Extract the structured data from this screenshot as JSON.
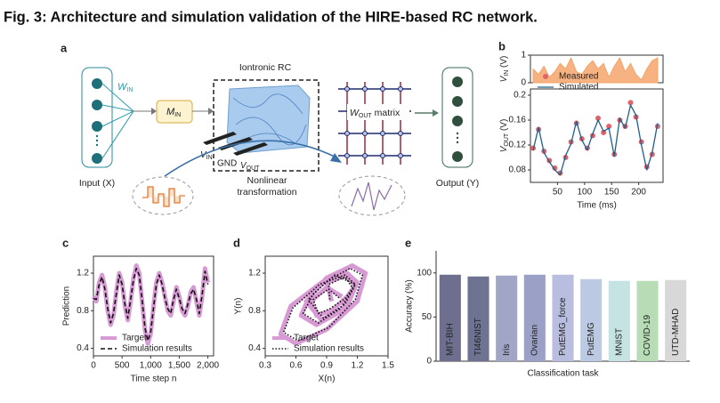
{
  "title": "Fig. 3: Architecture and simulation validation of the HIRE-based RC network.",
  "panel_a": {
    "label": "a",
    "reservoir": "Iontronic RC",
    "input": "Input (X)",
    "output": "Output (Y)",
    "w_in": {
      "symbol": "W",
      "sub": "IN"
    },
    "m_in": {
      "symbol": "M",
      "sub": "IN"
    },
    "w_out": {
      "symbol": "W",
      "sub": "OUT",
      "rest": " matrix"
    },
    "v_in": {
      "symbol": "V",
      "sub": "IN"
    },
    "gnd": "GND",
    "v_out": {
      "symbol": "V",
      "sub": "OUT"
    },
    "transform": [
      "Nonlinear",
      "transformation"
    ]
  },
  "chart_data": [
    {
      "type": "line",
      "label": "b",
      "ylabel": {
        "symbol": "V",
        "sub": "IN",
        "rest": " (V)"
      },
      "x": [
        5,
        15,
        25,
        35,
        45,
        55,
        65,
        75,
        85,
        95,
        105,
        115,
        125,
        135,
        145,
        155,
        165,
        175,
        185,
        195,
        205,
        215,
        225,
        235
      ],
      "series": [
        {
          "name": "V_IN",
          "style": "area",
          "color": "#f4a46a",
          "values": [
            0.5,
            0.3,
            0.6,
            0.2,
            0.4,
            0.7,
            0.5,
            0.9,
            0.4,
            0.3,
            0.6,
            0.8,
            0.5,
            0.7,
            0.2,
            0.6,
            0.9,
            0.4,
            0.7,
            0.3,
            0.1,
            0.5,
            0.8,
            0.9
          ]
        }
      ],
      "xlim": [
        0,
        245
      ],
      "ylim": [
        0,
        1
      ],
      "yticks": [
        0,
        1
      ]
    },
    {
      "type": "line",
      "xlabel": "Time (ms)",
      "ylabel": {
        "symbol": "V",
        "sub": "OUT",
        "rest": " (V)"
      },
      "legend": "upper left",
      "x": [
        5,
        15,
        25,
        35,
        45,
        55,
        65,
        75,
        85,
        95,
        105,
        115,
        125,
        135,
        145,
        155,
        165,
        175,
        185,
        195,
        205,
        215,
        225,
        235
      ],
      "series": [
        {
          "name": "Measured",
          "style": "markers",
          "color": "#e0626a",
          "values": [
            0.115,
            0.145,
            0.11,
            0.095,
            0.083,
            0.075,
            0.1,
            0.125,
            0.155,
            0.13,
            0.115,
            0.135,
            0.163,
            0.14,
            0.15,
            0.105,
            0.16,
            0.15,
            0.188,
            0.165,
            0.125,
            0.085,
            0.105,
            0.15
          ]
        },
        {
          "name": "Simulated",
          "style": "line",
          "color": "#1f5f8b",
          "values": [
            0.112,
            0.148,
            0.108,
            0.093,
            0.08,
            0.072,
            0.103,
            0.122,
            0.158,
            0.128,
            0.112,
            0.138,
            0.16,
            0.142,
            0.147,
            0.102,
            0.163,
            0.147,
            0.184,
            0.168,
            0.12,
            0.08,
            0.108,
            0.155
          ]
        }
      ],
      "xlim": [
        0,
        245
      ],
      "ylim": [
        0.06,
        0.21
      ],
      "xticks": [
        50,
        100,
        150,
        200
      ],
      "yticks": [
        0.08,
        0.12,
        0.16,
        0.2
      ]
    },
    {
      "type": "line",
      "label": "c",
      "xlabel": "Time step n",
      "ylabel": "Prediction",
      "legend": "lower left",
      "x": [
        0,
        50,
        100,
        150,
        200,
        250,
        300,
        350,
        400,
        450,
        500,
        550,
        600,
        650,
        700,
        750,
        800,
        850,
        900,
        950,
        1000,
        1050,
        1100,
        1150,
        1200,
        1250,
        1300,
        1350,
        1400,
        1450,
        1500,
        1550,
        1600,
        1650,
        1700,
        1750,
        1800,
        1850,
        1900,
        1950,
        2000
      ],
      "series": [
        {
          "name": "Target",
          "style": "thick",
          "color": "#d89ad4",
          "values": [
            0.95,
            0.9,
            1.1,
            1.18,
            1.05,
            0.8,
            0.65,
            0.75,
            1.0,
            1.2,
            1.1,
            0.85,
            0.7,
            0.9,
            1.15,
            1.28,
            1.2,
            0.9,
            0.6,
            0.45,
            0.55,
            0.85,
            1.1,
            1.2,
            1.1,
            0.95,
            0.8,
            0.75,
            0.9,
            1.05,
            0.95,
            0.8,
            0.75,
            0.85,
            1.0,
            1.05,
            0.9,
            0.75,
            0.95,
            1.25,
            1.1
          ]
        },
        {
          "name": "Simulation results",
          "style": "dashed",
          "color": "#111111",
          "values": [
            0.93,
            0.92,
            1.08,
            1.16,
            1.03,
            0.82,
            0.67,
            0.77,
            0.98,
            1.18,
            1.08,
            0.87,
            0.72,
            0.92,
            1.13,
            1.25,
            1.18,
            0.92,
            0.62,
            0.48,
            0.57,
            0.83,
            1.08,
            1.18,
            1.08,
            0.93,
            0.82,
            0.77,
            0.92,
            1.03,
            0.93,
            0.82,
            0.77,
            0.87,
            0.98,
            1.03,
            0.92,
            0.77,
            0.97,
            1.22,
            1.08
          ]
        }
      ],
      "xlim": [
        0,
        2100
      ],
      "ylim": [
        0.32,
        1.38
      ],
      "xticks": [
        0,
        500,
        {
          "value": 1000,
          "label": "1,000"
        },
        {
          "value": 1500,
          "label": "1,500"
        },
        {
          "value": 2000,
          "label": "2,000"
        }
      ],
      "yticks": [
        0.4,
        0.8,
        1.2
      ]
    },
    {
      "type": "line",
      "label": "d",
      "xlabel": "X(n)",
      "ylabel": "Y(n)",
      "legend": "lower left",
      "series": [
        {
          "name": "Target",
          "style": "thick",
          "color": "#d89ad4",
          "x": [
            0.95,
            0.9,
            1.1,
            1.18,
            1.05,
            0.8,
            0.65,
            0.75,
            1.0,
            1.2,
            1.1,
            0.85,
            0.7,
            0.9,
            1.15,
            1.28,
            1.2,
            0.9,
            0.6,
            0.45,
            0.55,
            0.85,
            1.1,
            1.2,
            1.1,
            0.95,
            0.8,
            0.75,
            0.9,
            1.05
          ],
          "values": [
            0.9,
            1.1,
            1.18,
            1.05,
            0.8,
            0.65,
            0.75,
            1.0,
            1.2,
            1.1,
            0.85,
            0.7,
            0.9,
            1.15,
            1.28,
            1.2,
            0.9,
            0.6,
            0.45,
            0.55,
            0.85,
            1.1,
            1.2,
            1.1,
            0.95,
            0.8,
            0.75,
            0.9,
            1.05,
            0.95
          ]
        },
        {
          "name": "Simulation results",
          "style": "dotted",
          "color": "#111111",
          "x": [
            0.93,
            0.92,
            1.08,
            1.16,
            1.03,
            0.82,
            0.67,
            0.77,
            0.98,
            1.18,
            1.08,
            0.87,
            0.72,
            0.92,
            1.13,
            1.25,
            1.18,
            0.92,
            0.62,
            0.48,
            0.57,
            0.83,
            1.08,
            1.18,
            1.08,
            0.93,
            0.82,
            0.77,
            0.92,
            1.03
          ],
          "values": [
            0.92,
            1.08,
            1.16,
            1.03,
            0.82,
            0.67,
            0.77,
            0.98,
            1.18,
            1.08,
            0.87,
            0.72,
            0.92,
            1.13,
            1.25,
            1.18,
            0.92,
            0.62,
            0.48,
            0.57,
            0.83,
            1.08,
            1.18,
            1.08,
            0.93,
            0.82,
            0.77,
            0.92,
            1.03,
            0.93
          ]
        }
      ],
      "xlim": [
        0.3,
        1.5
      ],
      "ylim": [
        0.32,
        1.38
      ],
      "xticks": [
        0.3,
        0.6,
        0.9,
        1.2,
        1.5
      ],
      "yticks": [
        0.4,
        0.8,
        1.2
      ]
    },
    {
      "type": "bar",
      "label": "e",
      "xlabel": "Classification task",
      "ylabel": "Accuracy (%)",
      "categories": [
        "MIT-BIH",
        "TI46NIST",
        "Iris",
        "Ovarian",
        "PutEMG_force",
        "PutEMG",
        "MNIST",
        "COVID-19",
        "UTD-MHAD"
      ],
      "values": [
        98,
        96,
        97,
        98,
        98,
        93,
        91,
        91,
        92
      ],
      "colors": [
        "#6e6f8f",
        "#6f7392",
        "#a1a6c6",
        "#9aa0c6",
        "#b9bde0",
        "#bcc9e3",
        "#c5e3e3",
        "#b7dcb6",
        "#d8d8d8"
      ],
      "ylim": [
        0,
        125
      ],
      "yticks": [
        0,
        50,
        100
      ]
    }
  ]
}
